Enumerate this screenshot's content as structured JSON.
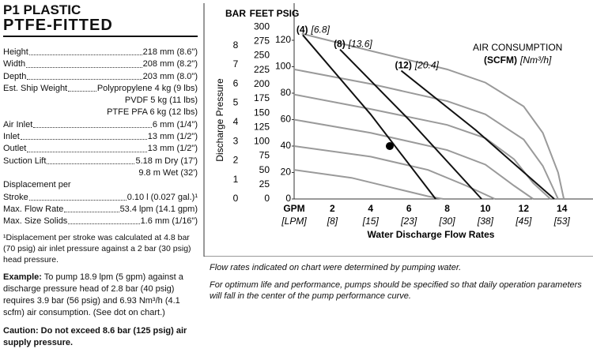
{
  "document": {
    "title": "P1 PLASTIC",
    "subtitle": "PTFE-FITTED",
    "specs": [
      {
        "label": "Height",
        "value": "218 mm (8.6\")"
      },
      {
        "label": "Width",
        "value": "208 mm (8.2\")"
      },
      {
        "label": "Depth",
        "value": "203 mm (8.0\")"
      },
      {
        "label": "Est. Ship Weight",
        "value": "Polypropylene 4 kg (9 lbs)",
        "extra": [
          "PVDF 5 kg (11 lbs)",
          "PTFE PFA 6 kg (12 lbs)"
        ]
      },
      {
        "label": "Air Inlet",
        "value": "6 mm (1/4\")"
      },
      {
        "label": "Inlet",
        "value": "13 mm (1/2\")"
      },
      {
        "label": "Outlet",
        "value": "13 mm (1/2\")"
      },
      {
        "label": "Suction Lift",
        "value": "5.18 m Dry (17')",
        "extra": [
          "9.8 m Wet (32')"
        ]
      },
      {
        "heading": "Displacement per"
      },
      {
        "label": "Stroke",
        "value": "0.10 l (0.027 gal.)¹"
      },
      {
        "label": "Max. Flow Rate",
        "value": "53.4 lpm (14.1 gpm)"
      },
      {
        "label": "Max. Size Solids",
        "value": "1.6 mm (1/16\")"
      }
    ],
    "footnote": "¹Displacement per stroke was calculated at 4.8 bar (70 psig) air inlet pressure against a 2 bar (30 psig) head pressure.",
    "example_label": "Example:",
    "example_text": "To pump 18.9 lpm (5 gpm) against a discharge pressure head of 2.8 bar (40 psig) requires 3.9 bar (56 psig) and 6.93 Nm³/h (4.1 scfm) air consumption. (See dot on chart.)",
    "caution": "Caution: Do not exceed 8.6 bar (125 psig) air supply pressure.",
    "notes": [
      "Flow rates indicated on chart were determined by pumping water.",
      "For optimum life and performance, pumps should be specified so that daily operation parameters will fall in the center of the pump performance curve."
    ]
  },
  "chart_data": {
    "type": "line",
    "y_label": "Discharge Pressure",
    "x_label": "Water Discharge Flow Rates",
    "x_header": "GPM",
    "x_header_metric": "[LPM]",
    "y_header": "PSIG",
    "y2_header": "FEET",
    "y3_header": "BAR",
    "annotation": "AIR CONSUMPTION",
    "annotation_unit": "(SCFM)",
    "annotation_unit_metric": "[Nm³/h]",
    "xlim": [
      0,
      15.5
    ],
    "xticks": [
      2,
      4,
      6,
      8,
      10,
      12,
      14
    ],
    "xticks_metric": [
      "[8]",
      "[15]",
      "[23]",
      "[30]",
      "[38]",
      "[45]",
      "[53]"
    ],
    "ylim": [
      0,
      130
    ],
    "yticks": [
      0,
      20,
      40,
      60,
      80,
      100,
      120
    ],
    "y2lim": [
      0,
      300
    ],
    "y2ticks": [
      0,
      25,
      50,
      75,
      100,
      125,
      150,
      175,
      200,
      225,
      250,
      275,
      300
    ],
    "y3lim": [
      0,
      8.96
    ],
    "y3ticks": [
      0,
      1,
      2,
      3,
      4,
      5,
      6,
      7,
      8
    ],
    "series": [
      {
        "color": "#9a9a9a",
        "x": [
          0.4,
          4,
          8,
          10,
          12,
          13,
          13.8,
          14.1
        ],
        "values": [
          125,
          112,
          98,
          88,
          70,
          50,
          20,
          0
        ]
      },
      {
        "color": "#9a9a9a",
        "x": [
          0,
          4,
          8,
          10,
          12,
          13,
          13.8
        ],
        "values": [
          98,
          87,
          74,
          64,
          45,
          25,
          0
        ]
      },
      {
        "color": "#9a9a9a",
        "x": [
          0,
          4,
          8,
          10,
          11.5,
          12.5,
          13.4
        ],
        "values": [
          79,
          68,
          56,
          46,
          30,
          12,
          0
        ]
      },
      {
        "color": "#9a9a9a",
        "x": [
          0,
          4,
          8,
          10,
          11.5,
          12.5
        ],
        "values": [
          60,
          50,
          37,
          26,
          10,
          0
        ]
      },
      {
        "color": "#9a9a9a",
        "x": [
          0,
          4,
          7,
          9,
          10.5
        ],
        "values": [
          40,
          32,
          22,
          10,
          0
        ]
      },
      {
        "color": "#9a9a9a",
        "x": [
          0,
          3,
          5,
          7,
          7.8
        ],
        "values": [
          22,
          16,
          9,
          2,
          0
        ]
      },
      {
        "name": "(4)",
        "name_metric": "[6.8]",
        "color": "#111111",
        "x": [
          0.45,
          4,
          7.4
        ],
        "values": [
          124,
          64,
          0
        ]
      },
      {
        "name": "(8)",
        "name_metric": "[13.6]",
        "color": "#111111",
        "x": [
          2.4,
          6,
          9.8
        ],
        "values": [
          113,
          60,
          0
        ]
      },
      {
        "name": "(12)",
        "name_metric": "[20.4]",
        "color": "#111111",
        "x": [
          5.6,
          9.5,
          13.6
        ],
        "values": [
          97,
          52,
          0
        ]
      }
    ],
    "point": {
      "x": 5,
      "y": 40,
      "color": "#000000"
    }
  }
}
